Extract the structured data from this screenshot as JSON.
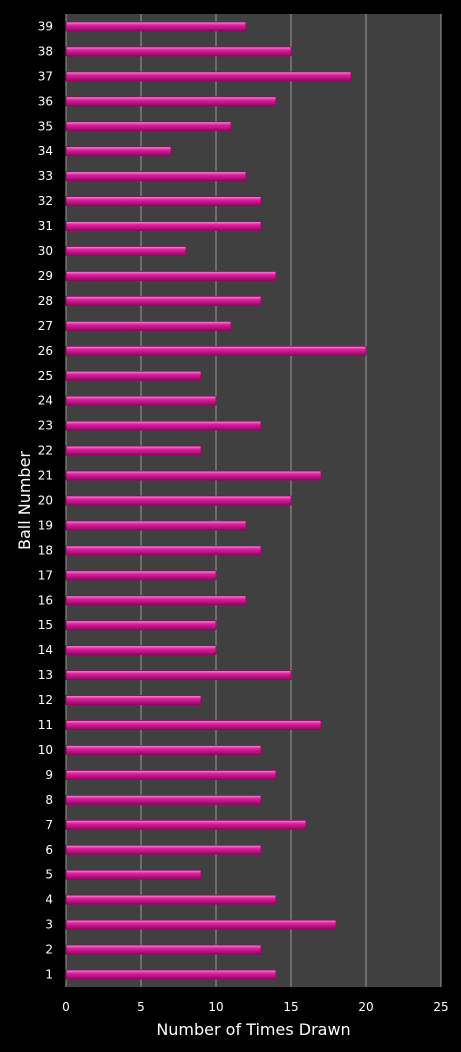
{
  "colors": {
    "page_background": "#000000",
    "plot_background": "#404040",
    "gridline": "#9a9a9a",
    "bar_fill": "#e21ea0",
    "bar_highlight": "#ff8ee0",
    "bar_shadow": "#8a0c60",
    "text": "#ffffff"
  },
  "chart_data": {
    "type": "bar",
    "orientation": "horizontal",
    "title": "",
    "xlabel": "Number of Times Drawn",
    "ylabel": "Ball Number",
    "xlim": [
      0,
      25
    ],
    "xticks": [
      0,
      5,
      10,
      15,
      20,
      25
    ],
    "grid": true,
    "legend": "none",
    "categories": [
      "1",
      "2",
      "3",
      "4",
      "5",
      "6",
      "7",
      "8",
      "9",
      "10",
      "11",
      "12",
      "13",
      "14",
      "15",
      "16",
      "17",
      "18",
      "19",
      "20",
      "21",
      "22",
      "23",
      "24",
      "25",
      "26",
      "27",
      "28",
      "29",
      "30",
      "31",
      "32",
      "33",
      "34",
      "35",
      "36",
      "37",
      "38",
      "39"
    ],
    "values": [
      14,
      13,
      18,
      14,
      9,
      13,
      16,
      13,
      14,
      13,
      17,
      9,
      15,
      10,
      10,
      12,
      10,
      13,
      12,
      15,
      17,
      9,
      13,
      10,
      9,
      20,
      11,
      13,
      14,
      8,
      13,
      13,
      12,
      7,
      11,
      14,
      19,
      15,
      12
    ]
  }
}
